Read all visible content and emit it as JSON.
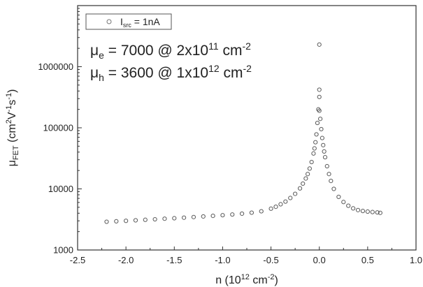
{
  "chart_data": {
    "type": "scatter",
    "xlim": [
      -2.5,
      1.0
    ],
    "ylim": [
      1000,
      10000000
    ],
    "y_scale": "log",
    "grid": false,
    "legend_position": "top-left",
    "x_ticks": [
      -2.5,
      -2.0,
      -1.5,
      -1.0,
      -0.5,
      0.0,
      0.5,
      1.0
    ],
    "x_tick_labels": [
      "-2.5",
      "-2.0",
      "-1.5",
      "-1.0",
      "-0.5",
      "0.0",
      "0.5",
      "1.0"
    ],
    "y_ticks": [
      1000,
      10000,
      100000,
      1000000
    ],
    "y_tick_labels": [
      "1000",
      "10000",
      "100000",
      "1000000"
    ],
    "xlabel": {
      "base": "n (10",
      "sup": "12",
      "unit": " cm",
      "sup2": "-2",
      "end": ")"
    },
    "ylabel": {
      "mu": "μ",
      "sub": "FET",
      "open": " (cm",
      "sup1": "2",
      "v": "V",
      "sup2": "-1",
      "s": "s",
      "sup3": "-1",
      "close": ")"
    },
    "legend": {
      "base": "I",
      "sub": "src",
      "rest": " = 1nA"
    },
    "annotations": {
      "electron": {
        "mu": "μ",
        "sub": "e",
        "text": " = 7000 @ 2x10",
        "sup": "11",
        "unit": " cm",
        "sup2": "-2"
      },
      "hole": {
        "mu": "μ",
        "sub": "h",
        "text": " = 3600 @ 1x10",
        "sup": "12",
        "unit": " cm",
        "sup2": "-2"
      }
    },
    "series": [
      {
        "marker": "open-circle",
        "x": [
          -2.2,
          -2.1,
          -2.0,
          -1.9,
          -1.8,
          -1.7,
          -1.6,
          -1.5,
          -1.4,
          -1.3,
          -1.2,
          -1.1,
          -1.0,
          -0.9,
          -0.8,
          -0.7,
          -0.6,
          -0.5,
          -0.45,
          -0.4,
          -0.35,
          -0.3,
          -0.25,
          -0.2,
          -0.17,
          -0.14,
          -0.12,
          -0.1,
          -0.08,
          -0.06,
          -0.05,
          -0.04,
          -0.03,
          -0.02,
          -0.01,
          0.0,
          0.0,
          0.0,
          0.0,
          0.01,
          0.02,
          0.03,
          0.04,
          0.05,
          0.06,
          0.08,
          0.1,
          0.12,
          0.15,
          0.2,
          0.25,
          0.3,
          0.35,
          0.4,
          0.45,
          0.5,
          0.55,
          0.6,
          0.63
        ],
        "y": [
          2900,
          2950,
          3000,
          3060,
          3120,
          3180,
          3250,
          3310,
          3380,
          3460,
          3540,
          3620,
          3710,
          3810,
          3930,
          4080,
          4300,
          4750,
          5100,
          5600,
          6200,
          7100,
          8300,
          10200,
          12200,
          14800,
          17500,
          21500,
          27500,
          38000,
          46000,
          58000,
          78000,
          120000,
          200000,
          2300000,
          420000,
          320000,
          190000,
          140000,
          95000,
          68000,
          52000,
          41000,
          33000,
          23500,
          17500,
          13500,
          10000,
          7400,
          6100,
          5300,
          4800,
          4500,
          4350,
          4250,
          4180,
          4120,
          4050
        ]
      }
    ]
  }
}
